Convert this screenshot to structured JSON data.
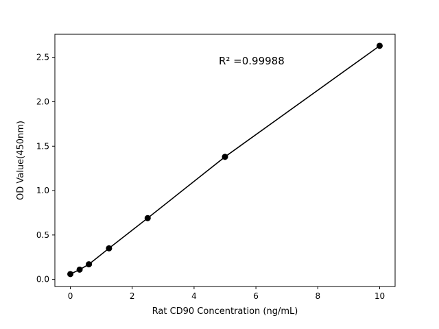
{
  "chart_data": {
    "type": "scatter",
    "title": "",
    "xlabel": "Rat CD90 Concentration (ng/mL)",
    "ylabel": "OD Value(450nm)",
    "x": [
      0,
      0.3,
      0.6,
      1.25,
      2.5,
      5,
      10
    ],
    "y": [
      0.06,
      0.11,
      0.17,
      0.35,
      0.69,
      1.38,
      2.63
    ],
    "annotation": {
      "text": "R² =0.99988",
      "x": 4.8,
      "y": 2.42
    },
    "xlim": [
      -0.5,
      10.5
    ],
    "ylim": [
      -0.08,
      2.76
    ],
    "xticks": [
      0,
      2,
      4,
      6,
      8,
      10
    ],
    "yticks": [
      0.0,
      0.5,
      1.0,
      1.5,
      2.0,
      2.5
    ],
    "ytick_decimals": 1,
    "grid": false,
    "legend": null,
    "line": true,
    "marker": "circle",
    "marker_size": 4.5,
    "line_width": 1.6,
    "marker_color": "#000000",
    "line_color": "#000000",
    "axis_color": "#000000",
    "background": "#ffffff"
  }
}
